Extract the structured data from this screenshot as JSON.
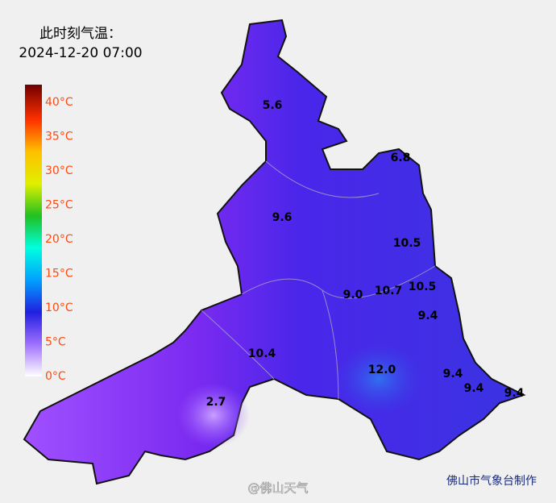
{
  "header": {
    "title": "此时刻气温：",
    "time": "2024-12-20 07:00"
  },
  "legend": {
    "labels": [
      "40°C",
      "35°C",
      "30°C",
      "25°C",
      "20°C",
      "15°C",
      "10°C",
      "5°C",
      "0°C"
    ]
  },
  "stations": [
    "5.6",
    "6.8",
    "9.6",
    "10.5",
    "9.0",
    "10.7",
    "10.5",
    "9.4",
    "10.4",
    "12.0",
    "9.4",
    "9.4",
    "9.4",
    "2.7"
  ],
  "footer": {
    "credit": "佛山市气象台制作",
    "watermark": "@佛山天气"
  }
}
